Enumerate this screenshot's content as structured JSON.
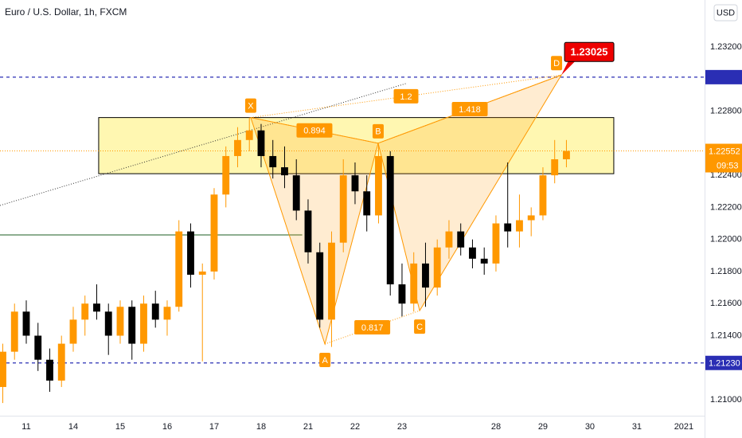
{
  "chart_data": {
    "type": "candlestick",
    "title": "Euro / U.S. Dollar, 1h, FXCM",
    "currency": "USD",
    "up_color": "#ff9800",
    "down_color": "#000000",
    "x": [
      -12,
      -6,
      0,
      6,
      12,
      18,
      24,
      30,
      36,
      42,
      48,
      54,
      60,
      66,
      72,
      78,
      84,
      90,
      96,
      102,
      108,
      114,
      120,
      126,
      132,
      138,
      144,
      150,
      156,
      162,
      168,
      174,
      180,
      186,
      192,
      198,
      204,
      210,
      216,
      222,
      228,
      234,
      240,
      246,
      252,
      258,
      264,
      270,
      276
    ],
    "open": [
      1.2108,
      1.213,
      1.2155,
      1.214,
      1.2125,
      1.2112,
      1.2135,
      1.215,
      1.216,
      1.2155,
      1.214,
      1.2158,
      1.2135,
      1.216,
      1.215,
      1.2158,
      1.2205,
      1.2178,
      1.218,
      1.2228,
      1.2252,
      1.2262,
      1.2268,
      1.2252,
      1.2245,
      1.224,
      1.2218,
      1.2192,
      1.215,
      1.2198,
      1.224,
      1.223,
      1.2215,
      1.2252,
      1.2172,
      1.216,
      1.2185,
      1.217,
      1.2195,
      1.2205,
      1.2195,
      1.2188,
      1.2185,
      1.221,
      1.2205,
      1.2212,
      1.2215,
      1.224,
      1.225
    ],
    "high": [
      1.2135,
      1.216,
      1.2162,
      1.2148,
      1.2132,
      1.214,
      1.2158,
      1.2165,
      1.2172,
      1.216,
      1.2162,
      1.2162,
      1.2165,
      1.2168,
      1.2162,
      1.2212,
      1.221,
      1.2185,
      1.2232,
      1.2258,
      1.227,
      1.2276,
      1.2272,
      1.2262,
      1.2258,
      1.225,
      1.2225,
      1.2198,
      1.2205,
      1.225,
      1.2248,
      1.224,
      1.2259,
      1.2255,
      1.2185,
      1.2192,
      1.2198,
      1.22,
      1.2212,
      1.221,
      1.22,
      1.2195,
      1.2215,
      1.2248,
      1.2228,
      1.222,
      1.2245,
      1.2262,
      1.2262
    ],
    "low": [
      1.2098,
      1.2125,
      1.2135,
      1.2118,
      1.2105,
      1.2108,
      1.213,
      1.214,
      1.215,
      1.2128,
      1.2135,
      1.2125,
      1.213,
      1.2145,
      1.214,
      1.2155,
      1.217,
      1.2124,
      1.2175,
      1.222,
      1.2245,
      1.2255,
      1.2245,
      1.2238,
      1.2232,
      1.2212,
      1.2185,
      1.2145,
      1.2133,
      1.2192,
      1.2222,
      1.2205,
      1.221,
      1.2165,
      1.2152,
      1.2155,
      1.2158,
      1.2165,
      1.2188,
      1.219,
      1.2182,
      1.2178,
      1.218,
      1.2195,
      1.2195,
      1.2202,
      1.2212,
      1.2235,
      1.2245
    ],
    "close": [
      1.213,
      1.2155,
      1.214,
      1.2125,
      1.2112,
      1.2135,
      1.215,
      1.216,
      1.2155,
      1.214,
      1.2158,
      1.2135,
      1.216,
      1.215,
      1.2158,
      1.2205,
      1.2178,
      1.218,
      1.2228,
      1.2252,
      1.2262,
      1.2268,
      1.2252,
      1.2245,
      1.224,
      1.2218,
      1.2192,
      1.215,
      1.2198,
      1.224,
      1.223,
      1.2215,
      1.2252,
      1.2172,
      1.216,
      1.2185,
      1.217,
      1.2195,
      1.2205,
      1.2195,
      1.2188,
      1.2185,
      1.221,
      1.2205,
      1.2212,
      1.2215,
      1.224,
      1.225,
      1.22552
    ],
    "xlim": [
      -13.42,
      346.6
    ],
    "ylim": [
      1.20901,
      1.23493
    ],
    "xticks": [
      {
        "value": 0,
        "label": "11"
      },
      {
        "value": 24,
        "label": "14"
      },
      {
        "value": 48,
        "label": "15"
      },
      {
        "value": 72,
        "label": "16"
      },
      {
        "value": 96,
        "label": "17"
      },
      {
        "value": 120,
        "label": "18"
      },
      {
        "value": 144,
        "label": "21"
      },
      {
        "value": 168,
        "label": "22"
      },
      {
        "value": 192,
        "label": "23"
      },
      {
        "value": 240,
        "label": "28"
      },
      {
        "value": 264,
        "label": "29"
      },
      {
        "value": 288,
        "label": "30"
      },
      {
        "value": 312,
        "label": "31"
      },
      {
        "value": 336,
        "label": "2021"
      }
    ],
    "yticks": [
      {
        "value": 1.232,
        "label": "1.23200"
      },
      {
        "value": 1.228,
        "label": "1.22800"
      },
      {
        "value": 1.224,
        "label": "1.22400"
      },
      {
        "value": 1.222,
        "label": "1.22200"
      },
      {
        "value": 1.22,
        "label": "1.22000"
      },
      {
        "value": 1.218,
        "label": "1.21800"
      },
      {
        "value": 1.216,
        "label": "1.21600"
      },
      {
        "value": 1.214,
        "label": "1.21400"
      },
      {
        "value": 1.21,
        "label": "1.21000"
      }
    ],
    "last_price": 1.22552,
    "countdown": "09:53",
    "horizontal_lines": [
      {
        "value": 1.23012,
        "color": "#2a2eb4"
      },
      {
        "value": 1.2123,
        "label": "1.21230",
        "color": "#2a2eb4"
      }
    ],
    "zone": {
      "x": [
        37,
        300.2
      ],
      "y": [
        1.2241,
        1.2276
      ],
      "color": "#ffeb3b"
    },
    "trendline": {
      "x": [
        -13.42,
        194
      ],
      "y": [
        1.22212,
        1.22972
      ]
    },
    "support_line": {
      "x": [
        -13.42,
        141
      ],
      "y": 1.22028,
      "color": "#1b5e20"
    },
    "pattern": {
      "color": "#ff9800",
      "points": [
        {
          "label": "X",
          "x": 114.7,
          "y": 1.2276
        },
        {
          "label": "A",
          "x": 152.6,
          "y": 1.21348
        },
        {
          "label": "B",
          "x": 179.8,
          "y": 1.226
        },
        {
          "label": "C",
          "x": 201,
          "y": 1.21556
        },
        {
          "label": "D",
          "x": 273.4,
          "y": 1.23025
        }
      ],
      "ratios": [
        0.894,
        1.2,
        1.418,
        0.817
      ]
    }
  }
}
